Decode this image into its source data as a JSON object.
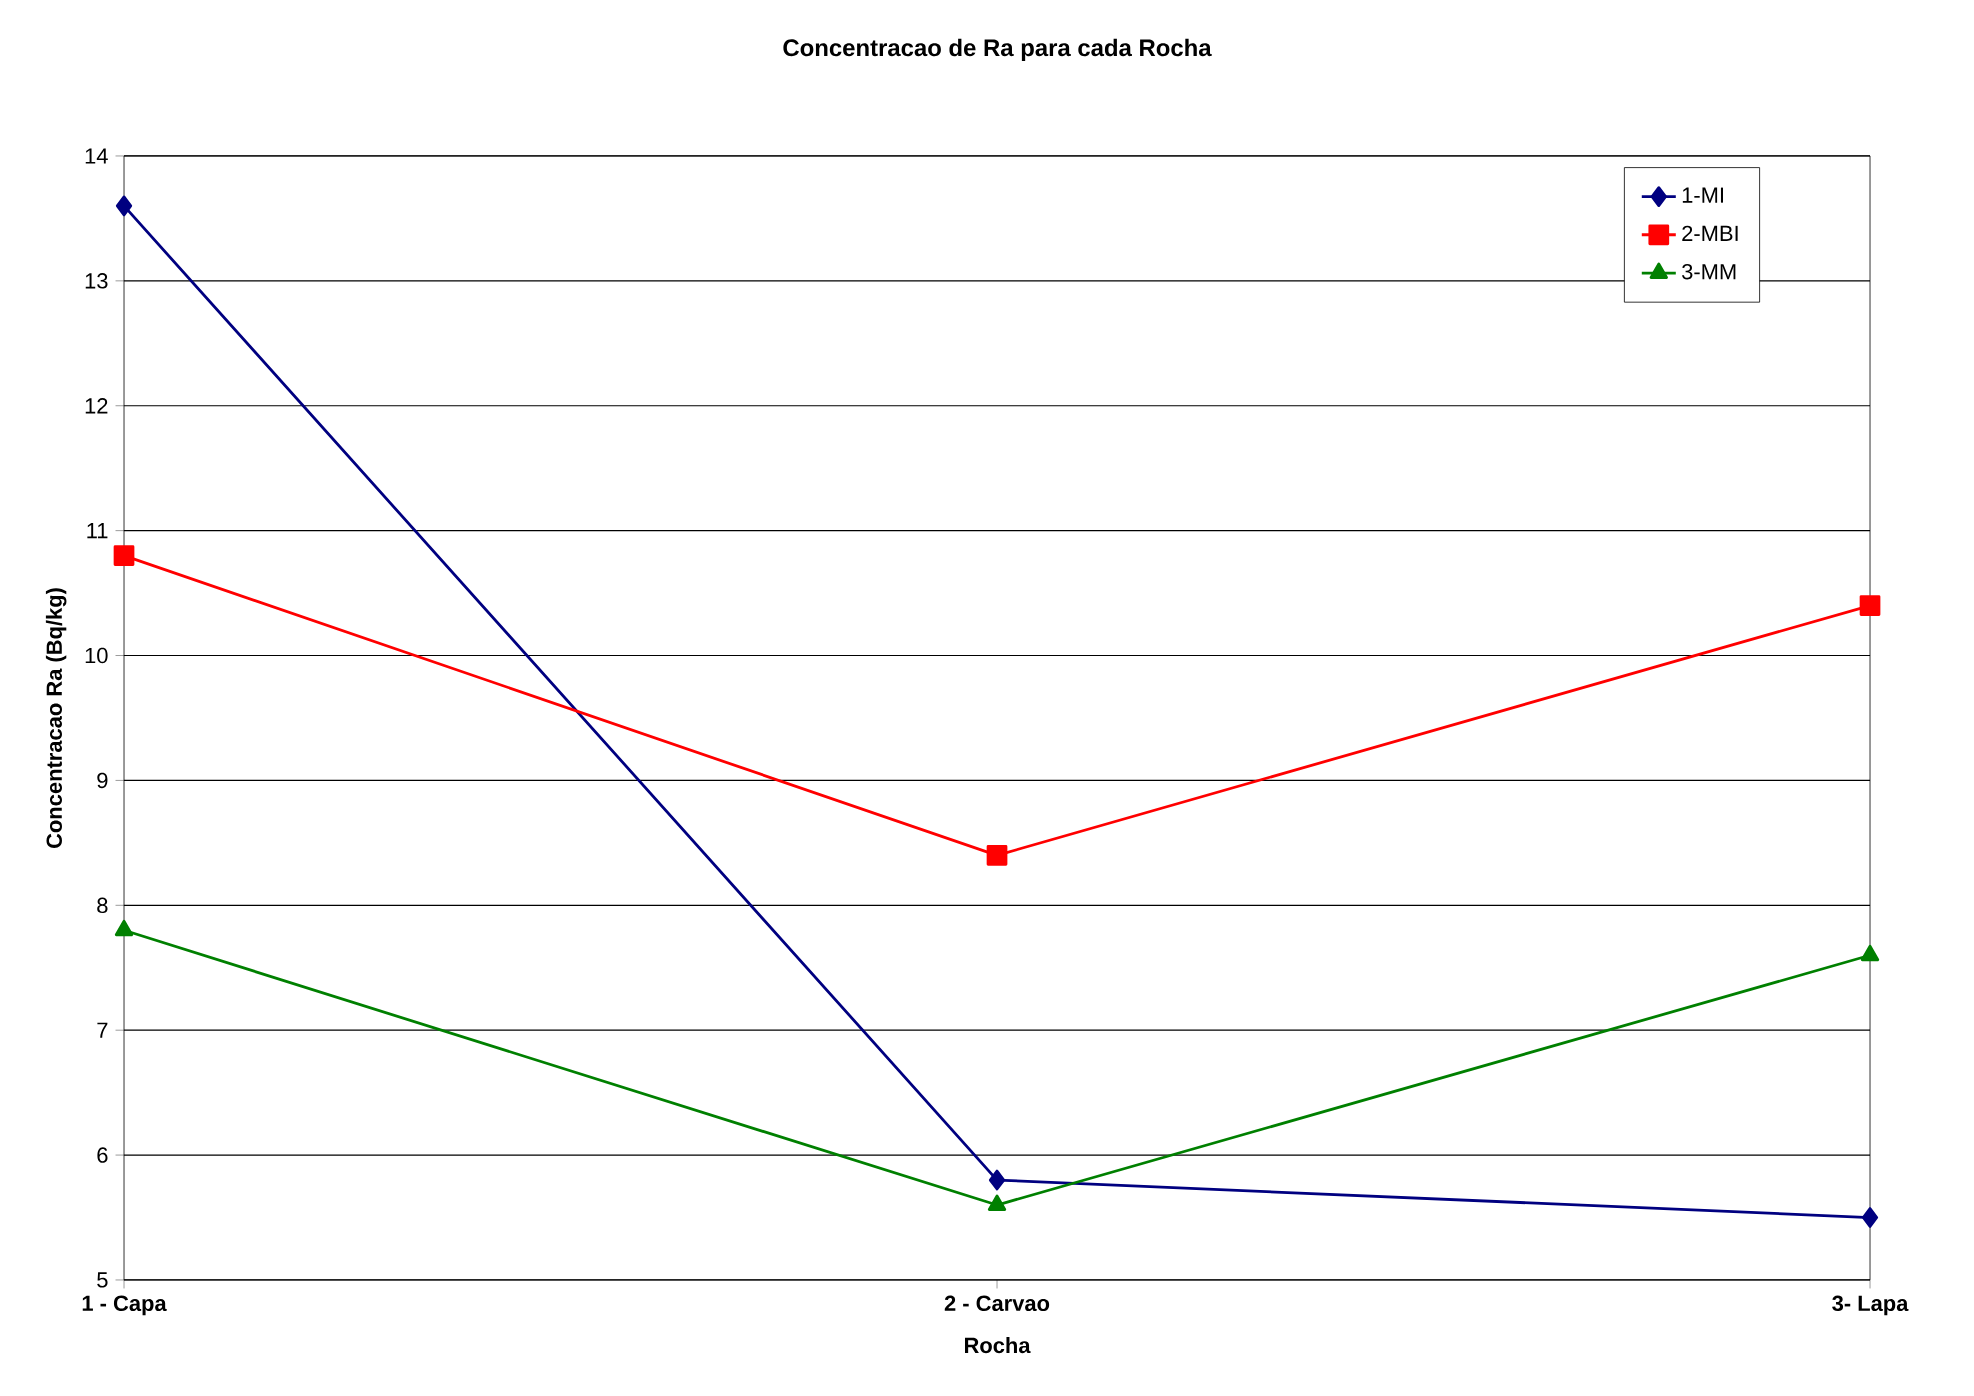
{
  "chart_data": {
    "type": "line",
    "title": "Concentracao de Ra para cada Rocha",
    "xlabel": "Rocha",
    "ylabel": "Concentracao Ra (Bq/kg)",
    "categories": [
      "1 - Capa",
      "2 - Carvao",
      "3- Lapa"
    ],
    "series": [
      {
        "name": "1-MI",
        "color": "#000080",
        "marker": "diamond",
        "values": [
          13.6,
          5.8,
          5.5
        ]
      },
      {
        "name": "2-MBI",
        "color": "#ff0000",
        "marker": "square",
        "values": [
          10.8,
          8.4,
          10.4
        ]
      },
      {
        "name": "3-MM",
        "color": "#008000",
        "marker": "triangle",
        "values": [
          7.8,
          5.6,
          7.6
        ]
      }
    ],
    "ylim": [
      5,
      14
    ],
    "yticks": [
      5,
      6,
      7,
      8,
      9,
      10,
      11,
      12,
      13,
      14
    ],
    "grid": "y",
    "legend": "top right",
    "line_style": "solid"
  }
}
